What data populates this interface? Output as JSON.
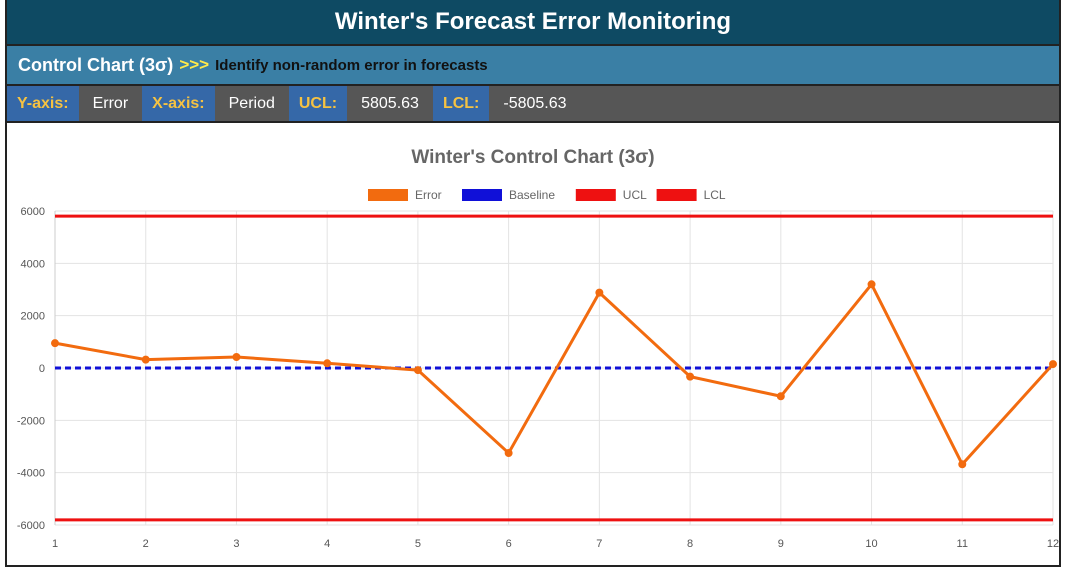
{
  "header": {
    "title": "Winter's Forecast Error Monitoring"
  },
  "subheader": {
    "label": "Control Chart (3σ)",
    "arrows": ">>>",
    "description": "Identify non-random error in forecasts"
  },
  "info": {
    "y_label": "Y-axis:",
    "y_value": "Error",
    "x_label": "X-axis:",
    "x_value": "Period",
    "ucl_label": "UCL:",
    "ucl_value": "5805.63",
    "lcl_label": "LCL:",
    "lcl_value": "-5805.63"
  },
  "colors": {
    "error": "#f26b0f",
    "baseline": "#1010d8",
    "limits": "#ee1111"
  },
  "chart_data": {
    "type": "line",
    "title": "Winter's Control Chart (3σ)",
    "x": [
      1,
      2,
      3,
      4,
      5,
      6,
      7,
      8,
      9,
      10,
      11,
      12
    ],
    "x_tick_labels": [
      "1",
      "2",
      "3",
      "4",
      "5",
      "6",
      "7",
      "8",
      "9",
      "10",
      "11",
      "12"
    ],
    "y_ticks": [
      6000,
      4000,
      2000,
      0,
      -2000,
      -4000,
      -6000
    ],
    "y_tick_labels": [
      "6000",
      "4000",
      "2000",
      "0",
      "-2000",
      "-4000",
      "-6000"
    ],
    "ylim": [
      -6000,
      6000
    ],
    "xlim": [
      1,
      12
    ],
    "grid": true,
    "legend_position": "top-center",
    "series": [
      {
        "name": "Error",
        "values": [
          950,
          320,
          420,
          180,
          -80,
          -3250,
          2880,
          -330,
          -1080,
          3200,
          -3680,
          150
        ]
      },
      {
        "name": "Baseline",
        "values": [
          0,
          0,
          0,
          0,
          0,
          0,
          0,
          0,
          0,
          0,
          0,
          0
        ]
      },
      {
        "name": "UCL",
        "values": [
          5805.63,
          5805.63,
          5805.63,
          5805.63,
          5805.63,
          5805.63,
          5805.63,
          5805.63,
          5805.63,
          5805.63,
          5805.63,
          5805.63
        ]
      },
      {
        "name": "LCL",
        "values": [
          -5805.63,
          -5805.63,
          -5805.63,
          -5805.63,
          -5805.63,
          -5805.63,
          -5805.63,
          -5805.63,
          -5805.63,
          -5805.63,
          -5805.63,
          -5805.63
        ]
      }
    ]
  }
}
